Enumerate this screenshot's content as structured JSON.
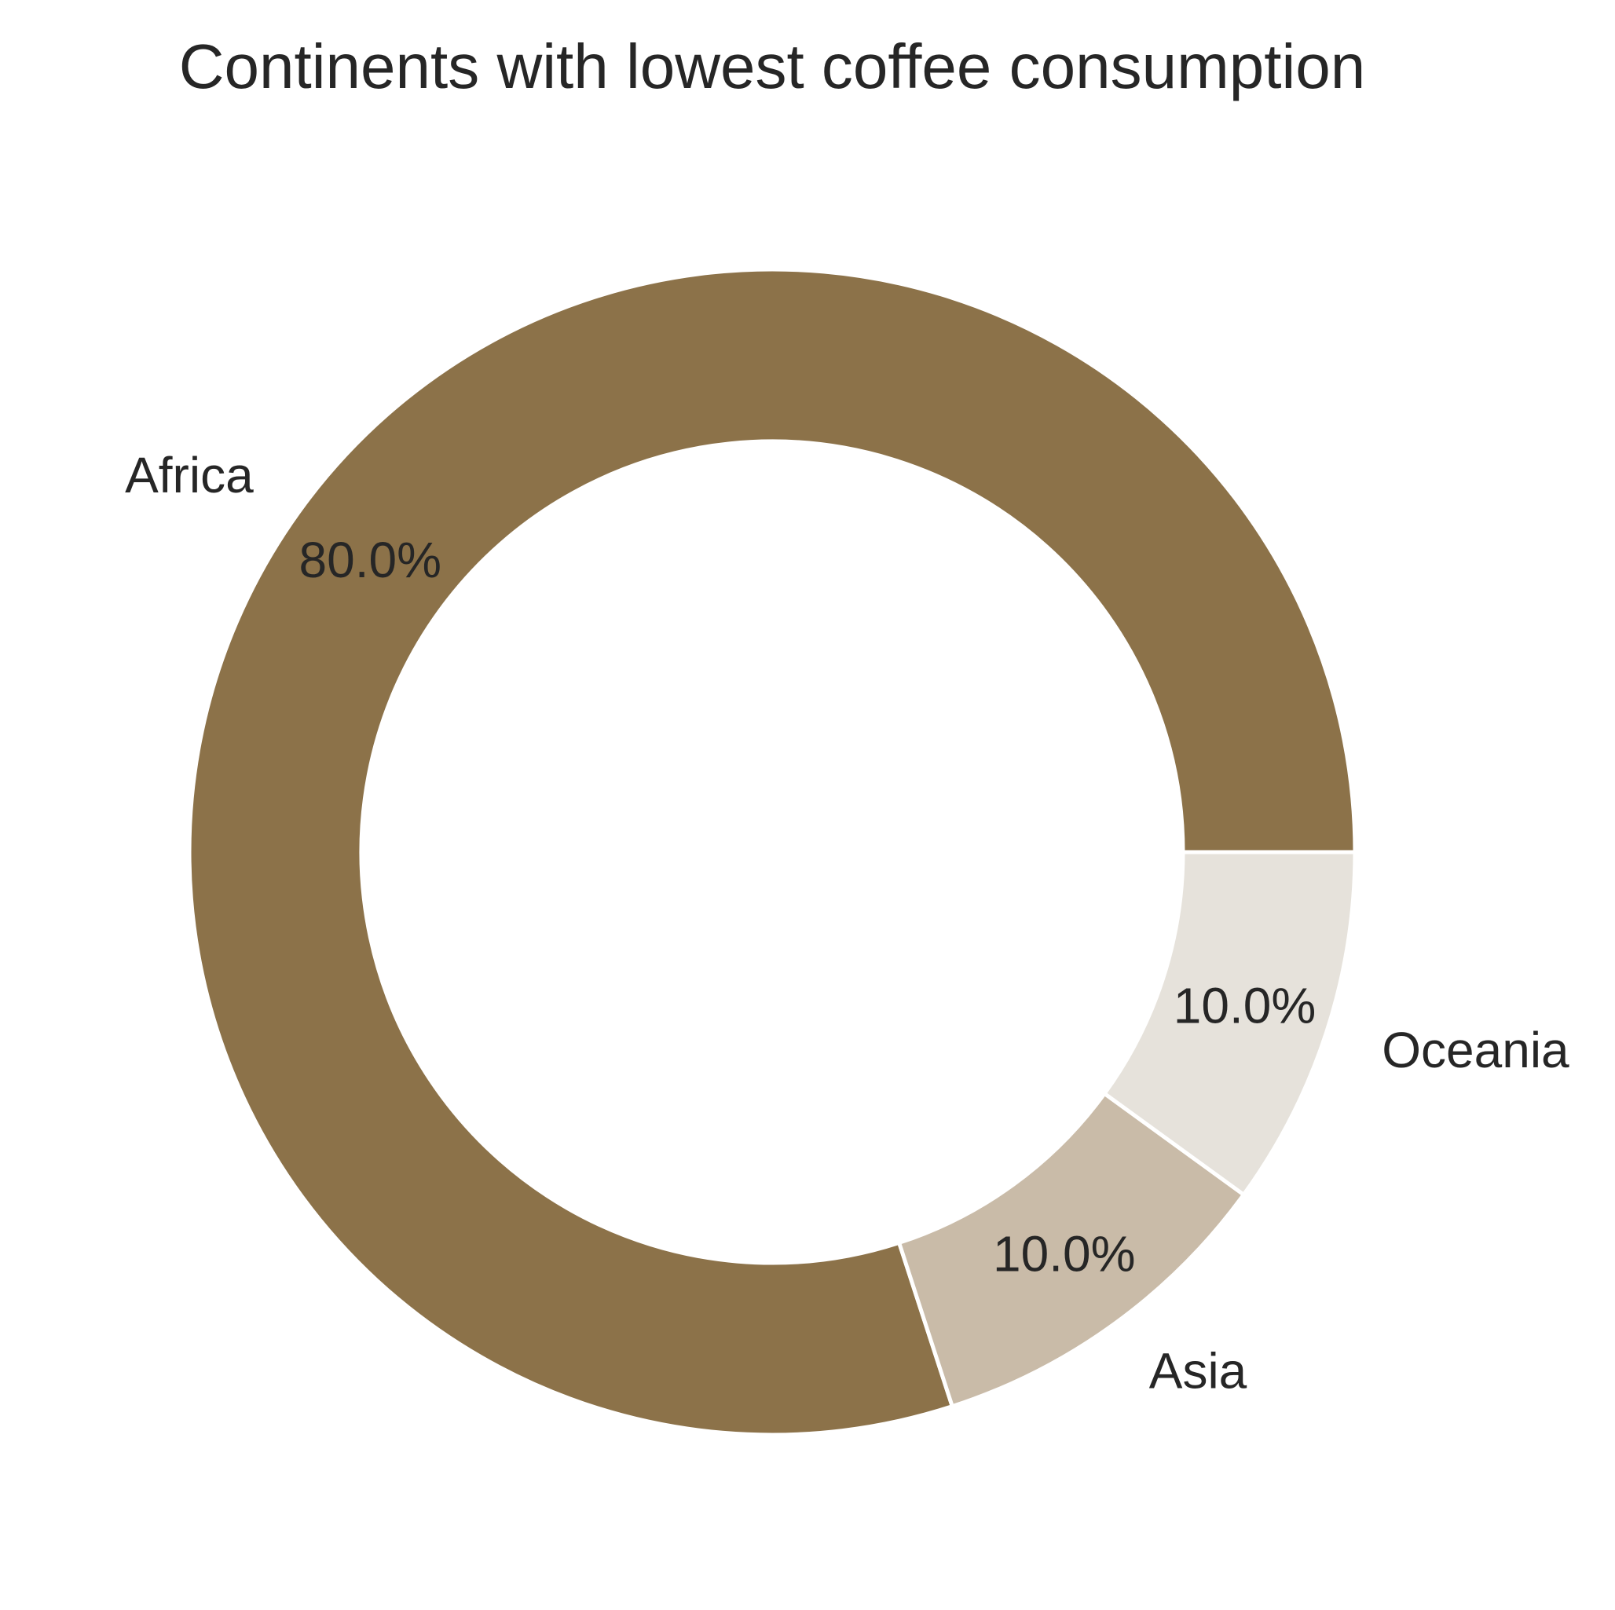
{
  "chart_data": {
    "type": "pie",
    "variant": "donut",
    "title": "Continents with lowest coffee consumption",
    "categories": [
      "Africa",
      "Asia",
      "Oceania"
    ],
    "values": [
      80.0,
      10.0,
      10.0
    ],
    "value_labels": [
      "80.0%",
      "10.0%",
      "10.0%"
    ],
    "colors": [
      "#8c7249",
      "#c9bba8",
      "#e6e2db"
    ],
    "edge_color": "#ffffff",
    "direction": "counterclockwise",
    "legend": "none"
  }
}
